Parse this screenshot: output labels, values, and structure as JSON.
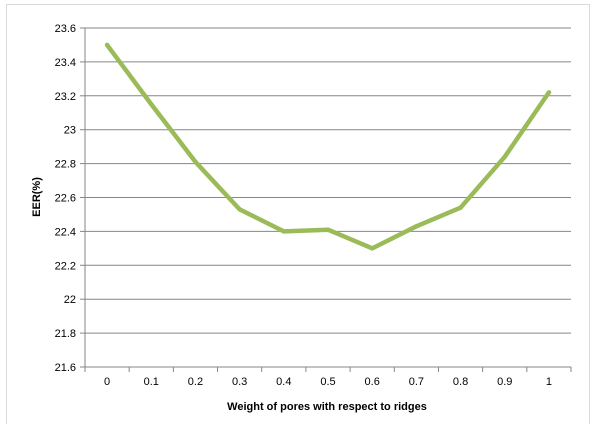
{
  "chart_data": {
    "type": "line",
    "title": "",
    "xlabel": "Weight of pores with respect to ridges",
    "ylabel": "EER(%)",
    "categories": [
      "0",
      "0.1",
      "0.2",
      "0.3",
      "0.4",
      "0.5",
      "0.6",
      "0.7",
      "0.8",
      "0.9",
      "1"
    ],
    "series": [
      {
        "values": [
          23.5,
          23.15,
          22.81,
          22.53,
          22.4,
          22.41,
          22.3,
          22.43,
          22.54,
          22.84,
          23.22
        ],
        "color": "#9bbb59"
      }
    ],
    "ylim": [
      21.6,
      23.6
    ],
    "yticks": [
      "21.6",
      "21.8",
      "22",
      "22.2",
      "22.4",
      "22.6",
      "22.8",
      "23",
      "23.2",
      "23.4",
      "23.6"
    ],
    "grid": "horizontal",
    "legend": "none"
  }
}
